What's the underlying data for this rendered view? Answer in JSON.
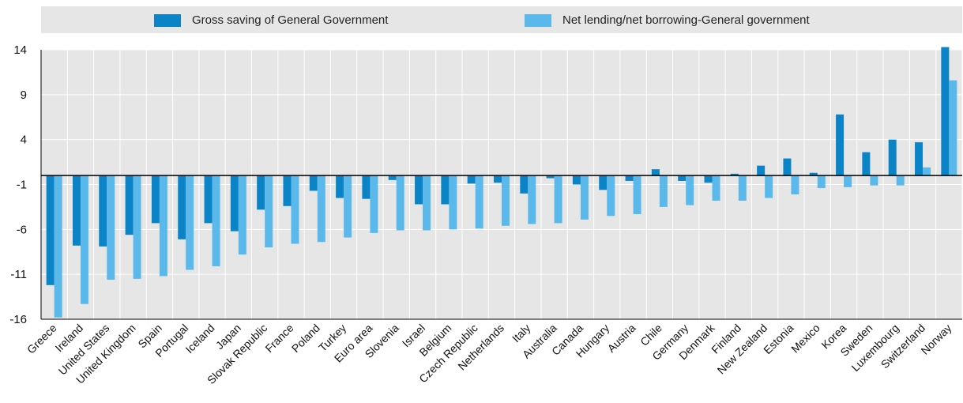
{
  "legend": {
    "series1": "Gross saving of General Government",
    "series2": "Net lending/net borrowing-General government"
  },
  "colors": {
    "series1": "#0b83c7",
    "series2": "#5bb8ea",
    "plot_bg": "#e6e6e6",
    "grid": "#ffffff",
    "zero_line": "#000000"
  },
  "chart_data": {
    "type": "bar",
    "title": "",
    "xlabel": "",
    "ylabel": "",
    "ylim": [
      -16,
      14
    ],
    "yticks": [
      -16,
      -11,
      -6,
      -1,
      4,
      9,
      14
    ],
    "grid": true,
    "legend_position": "top",
    "categories": [
      "Greece",
      "Ireland",
      "United States",
      "United Kingdom",
      "Spain",
      "Portugal",
      "Iceland",
      "Japan",
      "Slovak Republic",
      "France",
      "Poland",
      "Turkey",
      "Euro area",
      "Slovenia",
      "Israel",
      "Belgium",
      "Czech Republic",
      "Netherlands",
      "Italy",
      "Australia",
      "Canada",
      "Hungary",
      "Austria",
      "Chile",
      "Germany",
      "Denmark",
      "Finland",
      "New Zealand",
      "Estonia",
      "Mexico",
      "Korea",
      "Sweden",
      "Luxembourg",
      "Switzerland",
      "Norway"
    ],
    "series": [
      {
        "name": "Gross saving of General Government",
        "values": [
          -12.2,
          -7.8,
          -7.9,
          -6.6,
          -5.3,
          -7.1,
          -5.3,
          -6.2,
          -3.8,
          -3.4,
          -1.7,
          -2.5,
          -2.6,
          -0.5,
          -3.2,
          -3.2,
          -0.9,
          -0.8,
          -2.0,
          -0.3,
          -1.0,
          -1.6,
          -0.6,
          0.7,
          -0.6,
          -0.8,
          0.2,
          1.1,
          1.9,
          0.3,
          6.8,
          2.6,
          4.0,
          3.7,
          14.3
        ]
      },
      {
        "name": "Net lending/net borrowing-General government",
        "values": [
          -15.8,
          -14.3,
          -11.6,
          -11.5,
          -11.2,
          -10.5,
          -10.1,
          -8.8,
          -8.0,
          -7.6,
          -7.4,
          -6.9,
          -6.4,
          -6.1,
          -6.1,
          -6.0,
          -5.9,
          -5.6,
          -5.4,
          -5.3,
          -4.9,
          -4.5,
          -4.3,
          -3.5,
          -3.3,
          -2.8,
          -2.8,
          -2.5,
          -2.1,
          -1.4,
          -1.3,
          -1.1,
          -1.1,
          0.9,
          10.6
        ]
      }
    ]
  }
}
